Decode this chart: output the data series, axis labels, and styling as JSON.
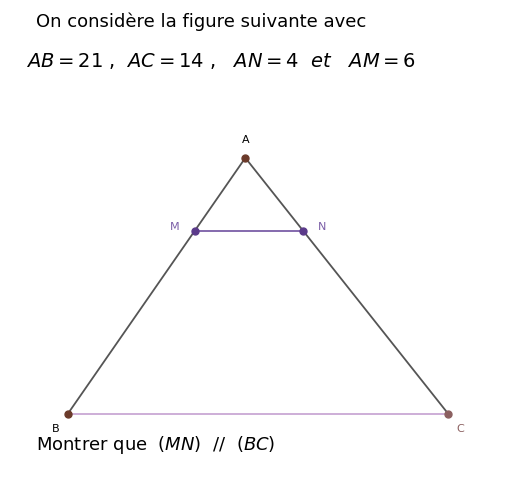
{
  "title_line1": "On considère la figure suivante avec",
  "title_line2": "$AB = 21$ ,  $AC = 14$ ,   $AN = 4$  $et$   $AM = 6$",
  "footer": "Montrer que  $(MN)$  //  $(BC)$",
  "A": [
    0.52,
    1.0
  ],
  "B": [
    0.1,
    0.0
  ],
  "C": [
    1.0,
    0.0
  ],
  "am_ratio": 0.2857,
  "an_ratio": 0.2857,
  "triangle_color": "#555555",
  "mn_color": "#7B5EA7",
  "bc_color": "#C9A8D4",
  "dot_color_A": "#6B3A2A",
  "dot_color_MN": "#5B3A8A",
  "dot_color_B": "#6B3A2A",
  "dot_color_C": "#8B6060",
  "label_fontsize": 8,
  "text_fontsize": 13,
  "footer_fontsize": 13,
  "bg_color": "#ffffff"
}
